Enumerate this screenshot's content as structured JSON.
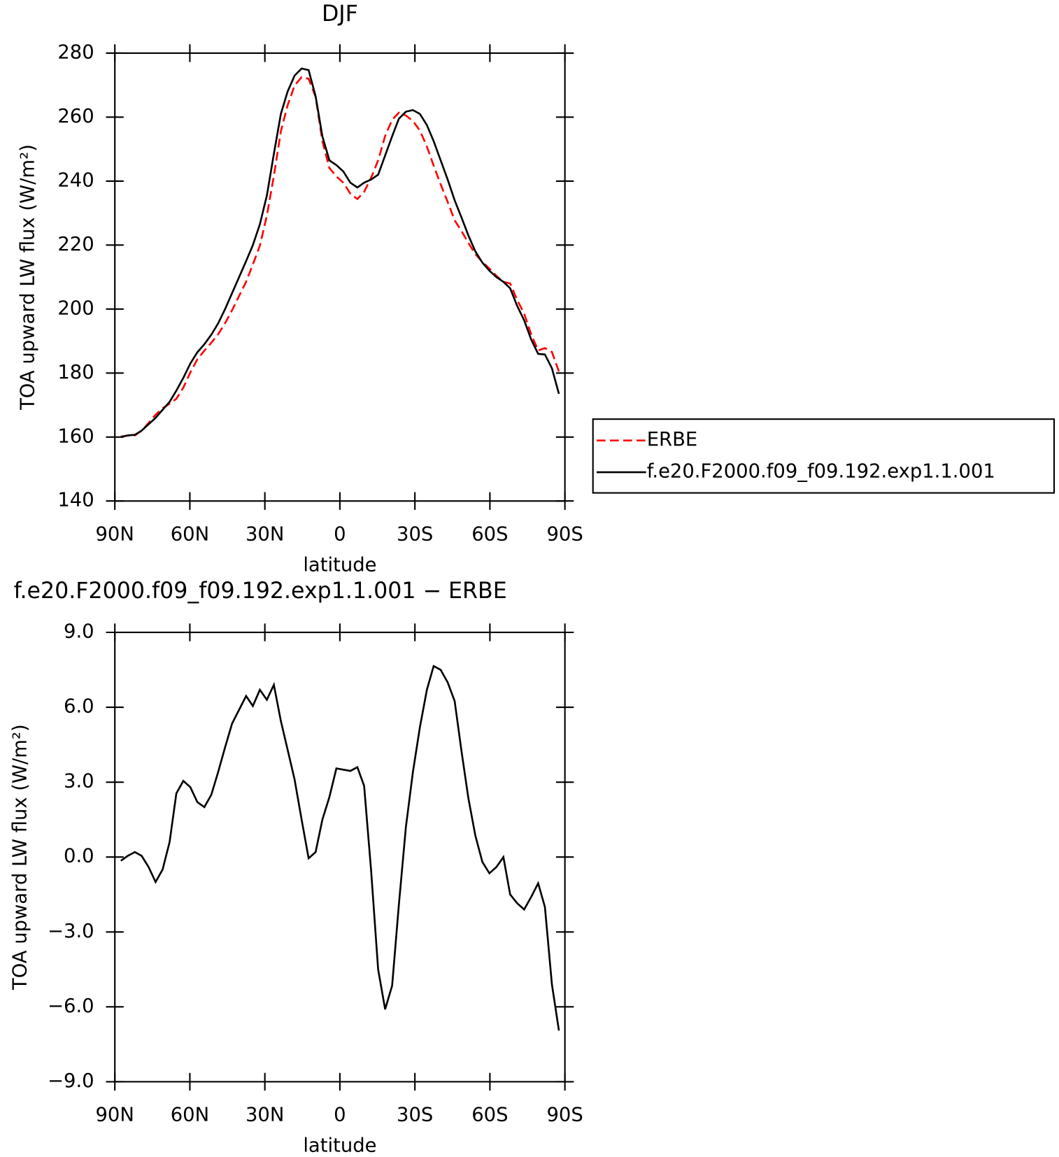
{
  "chart_data": [
    {
      "type": "line",
      "title": "DJF",
      "xlabel": "latitude",
      "ylabel": "TOA upward LW flux (W/m²)",
      "x": [
        87.6,
        84.8,
        82.0,
        79.3,
        76.5,
        73.7,
        70.9,
        68.1,
        65.4,
        62.6,
        59.8,
        57.0,
        54.2,
        51.4,
        48.7,
        45.9,
        43.1,
        40.3,
        37.5,
        34.8,
        32.0,
        29.2,
        26.4,
        23.6,
        20.9,
        18.1,
        15.3,
        12.5,
        9.7,
        7.0,
        4.2,
        1.4,
        -1.4,
        -4.2,
        -7.0,
        -9.7,
        -12.5,
        -15.3,
        -18.1,
        -20.9,
        -23.6,
        -26.4,
        -29.2,
        -32.0,
        -34.8,
        -37.5,
        -40.3,
        -43.1,
        -45.9,
        -48.7,
        -51.4,
        -54.2,
        -57.0,
        -59.8,
        -62.6,
        -65.4,
        -68.1,
        -70.9,
        -73.7,
        -76.5,
        -79.3,
        -82.0,
        -84.8,
        -87.6
      ],
      "series": [
        {
          "name": "ERBE",
          "color": "#ff0000",
          "dashed": true,
          "values": [
            160.15,
            160.45,
            160.5,
            161.95,
            164.4,
            167.0,
            169.0,
            170.4,
            171.95,
            175.45,
            180.2,
            184.3,
            187.0,
            189.5,
            192.1,
            195.6,
            199.65,
            204.1,
            208.55,
            213.95,
            219.8,
            229.2,
            241.6,
            255.55,
            263.7,
            269.9,
            272.5,
            272.0,
            266.3,
            252.5,
            244.1,
            241.45,
            239.5,
            236.05,
            234.4,
            236.65,
            241.05,
            246.5,
            254.1,
            259.15,
            261.4,
            260.5,
            258.8,
            255.8,
            250.8,
            244.85,
            239.0,
            233.5,
            227.75,
            224.3,
            220.65,
            217.15,
            214.7,
            212.65,
            210.4,
            208.5,
            208.0,
            202.85,
            198.6,
            192.1,
            187.05,
            187.8,
            186.6,
            180.45
          ]
        },
        {
          "name": "f.e20.F2000.f09_f09.192.exp1.1.001",
          "color": "#000000",
          "dashed": false,
          "values": [
            160.0,
            160.5,
            160.7,
            162,
            164,
            166,
            168.5,
            171,
            174.5,
            178.5,
            183,
            186.5,
            189,
            192,
            195.5,
            200,
            205,
            210,
            215,
            220,
            226.5,
            235.5,
            248.5,
            261,
            268,
            273,
            275.2,
            274.7,
            266.5,
            254,
            246.5,
            245,
            243,
            239.5,
            238,
            239.5,
            240.5,
            242,
            248,
            254,
            259.5,
            261.7,
            262.2,
            261,
            257.5,
            252.5,
            246.5,
            240.5,
            234,
            228.5,
            223,
            218,
            214.5,
            212,
            210,
            208.5,
            206.5,
            201,
            196.5,
            190.5,
            186,
            185.8,
            181.5,
            173.5
          ]
        }
      ],
      "xlim": [
        90,
        -90
      ],
      "xticks": [
        {
          "value": 90,
          "label": "90N"
        },
        {
          "value": 60,
          "label": "60N"
        },
        {
          "value": 30,
          "label": "30N"
        },
        0,
        {
          "value": -30,
          "label": "30S"
        },
        {
          "value": -60,
          "label": "60S"
        },
        {
          "value": -90,
          "label": "90S"
        }
      ],
      "ylim": [
        140,
        280
      ],
      "yticks": [
        140,
        160,
        180,
        200,
        220,
        240,
        260,
        280
      ],
      "legend": "outside-right"
    },
    {
      "type": "line",
      "title": "f.e20.F2000.f09_f09.192.exp1.1.001 − ERBE",
      "xlabel": "latitude",
      "ylabel": "TOA upward LW flux (W/m²)",
      "x": [
        87.6,
        84.8,
        82.0,
        79.3,
        76.5,
        73.7,
        70.9,
        68.1,
        65.4,
        62.6,
        59.8,
        57.0,
        54.2,
        51.4,
        48.7,
        45.9,
        43.1,
        40.3,
        37.5,
        34.8,
        32.0,
        29.2,
        26.4,
        23.6,
        20.9,
        18.1,
        15.3,
        12.5,
        9.7,
        7.0,
        4.2,
        1.4,
        -1.4,
        -4.2,
        -7.0,
        -9.7,
        -12.5,
        -15.3,
        -18.1,
        -20.9,
        -23.6,
        -26.4,
        -29.2,
        -32.0,
        -34.8,
        -37.5,
        -40.3,
        -43.1,
        -45.9,
        -48.7,
        -51.4,
        -54.2,
        -57.0,
        -59.8,
        -62.6,
        -65.4,
        -68.1,
        -70.9,
        -73.7,
        -76.5,
        -79.3,
        -82.0,
        -84.8,
        -87.6
      ],
      "series": [
        {
          "color": "#000000",
          "dashed": false,
          "values": [
            -0.15,
            0.05,
            0.2,
            0.05,
            -0.4,
            -1.0,
            -0.5,
            0.6,
            2.55,
            3.05,
            2.8,
            2.2,
            2.0,
            2.5,
            3.4,
            4.4,
            5.35,
            5.9,
            6.45,
            6.05,
            6.7,
            6.3,
            6.9,
            5.45,
            4.3,
            3.1,
            1.5,
            -0.05,
            0.2,
            1.5,
            2.4,
            3.55,
            3.5,
            3.45,
            3.6,
            2.85,
            -0.55,
            -4.5,
            -6.1,
            -5.15,
            -1.9,
            1.2,
            3.4,
            5.2,
            6.7,
            7.65,
            7.5,
            7.0,
            6.25,
            4.2,
            2.35,
            0.85,
            -0.2,
            -0.65,
            -0.4,
            0.0,
            -1.5,
            -1.85,
            -2.1,
            -1.6,
            -1.05,
            -2.0,
            -5.1,
            -6.95
          ]
        }
      ],
      "xlim": [
        90,
        -90
      ],
      "xticks": [
        {
          "value": 90,
          "label": "90N"
        },
        {
          "value": 60,
          "label": "60N"
        },
        {
          "value": 30,
          "label": "30N"
        },
        0,
        {
          "value": -30,
          "label": "30S"
        },
        {
          "value": -60,
          "label": "60S"
        },
        {
          "value": -90,
          "label": "90S"
        }
      ],
      "ylim": [
        -9,
        9
      ],
      "yticks": [
        {
          "value": -9,
          "label": "−9.0"
        },
        {
          "value": -6,
          "label": "−6.0"
        },
        {
          "value": -3,
          "label": "−3.0"
        },
        {
          "value": 0,
          "label": "0.0"
        },
        {
          "value": 3,
          "label": "3.0"
        },
        {
          "value": 6,
          "label": "6.0"
        },
        {
          "value": 9,
          "label": "9.0"
        }
      ]
    }
  ]
}
